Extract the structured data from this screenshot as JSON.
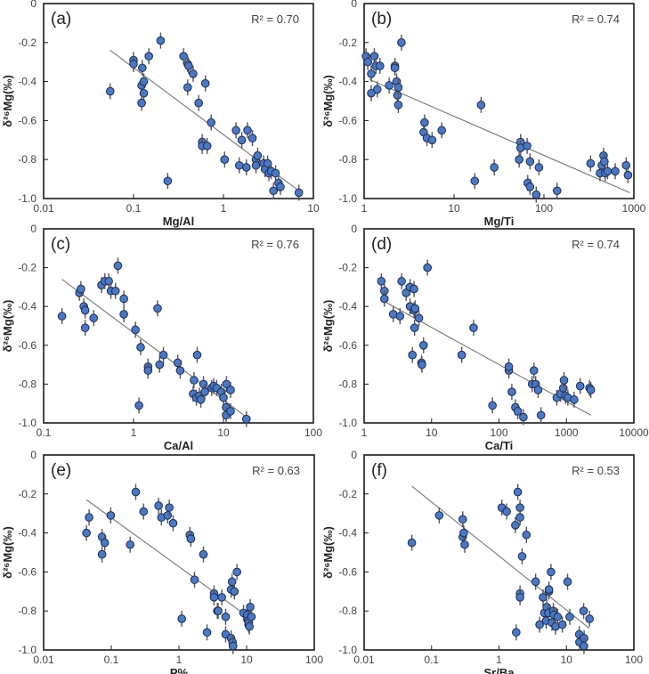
{
  "colors": {
    "marker_fill": "#4a78c8",
    "marker_stroke": "#1c2c4c",
    "error_bar": "#555555",
    "fit_line": "#777777",
    "frame": "#1a1a1a"
  },
  "chart_data": [
    {
      "type": "scatter",
      "panel": "(a)",
      "r2": "R² = 0.70",
      "xlabel": "Mg/Al",
      "ylabel": "δ²⁶Mg(‰)",
      "xscale": "log",
      "xlim": [
        0.01,
        10
      ],
      "ylim": [
        -1.0,
        0
      ],
      "xticks": [
        "0.01",
        "0.1",
        "1",
        "10"
      ],
      "xtick_values": [
        0.01,
        0.1,
        1,
        10
      ],
      "yticks": [
        "0",
        "-0.2",
        "-0.4",
        "-0.6",
        "-0.8",
        "-1.0"
      ],
      "ytick_values": [
        0,
        -0.2,
        -0.4,
        -0.6,
        -0.8,
        -1.0
      ],
      "fit": {
        "x": [
          0.055,
          6.9
        ],
        "y": [
          -0.24,
          -0.96
        ]
      },
      "points": [
        [
          0.055,
          -0.45
        ],
        [
          0.1,
          -0.29
        ],
        [
          0.1,
          -0.31
        ],
        [
          0.125,
          -0.33
        ],
        [
          0.123,
          -0.42
        ],
        [
          0.13,
          -0.46
        ],
        [
          0.123,
          -0.51
        ],
        [
          0.13,
          -0.4
        ],
        [
          0.148,
          -0.27
        ],
        [
          0.2,
          -0.19
        ],
        [
          0.24,
          -0.91
        ],
        [
          0.36,
          -0.27
        ],
        [
          0.4,
          -0.31
        ],
        [
          0.41,
          -0.32
        ],
        [
          0.4,
          -0.43
        ],
        [
          0.46,
          -0.36
        ],
        [
          0.63,
          -0.41
        ],
        [
          0.53,
          -0.51
        ],
        [
          0.73,
          -0.61
        ],
        [
          0.58,
          -0.71
        ],
        [
          0.58,
          -0.73
        ],
        [
          0.66,
          -0.73
        ],
        [
          1.03,
          -0.8
        ],
        [
          1.38,
          -0.65
        ],
        [
          1.5,
          -0.83
        ],
        [
          1.6,
          -0.7
        ],
        [
          1.8,
          -0.84
        ],
        [
          1.85,
          -0.65
        ],
        [
          2.1,
          -0.69
        ],
        [
          2.3,
          -0.8
        ],
        [
          2.3,
          -0.83
        ],
        [
          2.4,
          -0.78
        ],
        [
          2.8,
          -0.82
        ],
        [
          2.9,
          -0.85
        ],
        [
          3.1,
          -0.82
        ],
        [
          3.2,
          -0.87
        ],
        [
          3.4,
          -0.86
        ],
        [
          3.8,
          -0.87
        ],
        [
          3.6,
          -0.96
        ],
        [
          4.1,
          -0.92
        ],
        [
          4.3,
          -0.94
        ],
        [
          6.9,
          -0.97
        ]
      ]
    },
    {
      "type": "scatter",
      "panel": "(b)",
      "r2": "R² = 0.74",
      "xlabel": "Mg/Ti",
      "ylabel": "δ²⁶Mg(‰)",
      "xscale": "log",
      "xlim": [
        1,
        1000
      ],
      "ylim": [
        -1.0,
        0
      ],
      "xticks": [
        "1",
        "10",
        "100",
        "1000"
      ],
      "xtick_values": [
        1,
        10,
        100,
        1000
      ],
      "yticks": [
        "0",
        "-0.2",
        "-0.4",
        "-0.6",
        "-0.8",
        "-1.0"
      ],
      "ytick_values": [
        0,
        -0.2,
        -0.4,
        -0.6,
        -0.8,
        -1.0
      ],
      "fit": {
        "x": [
          1.15,
          900
        ],
        "y": [
          -0.39,
          -0.97
        ]
      },
      "points": [
        [
          1.05,
          -0.27
        ],
        [
          1.1,
          -0.3
        ],
        [
          1.2,
          -0.36
        ],
        [
          1.2,
          -0.46
        ],
        [
          1.3,
          -0.27
        ],
        [
          1.35,
          -0.32
        ],
        [
          1.4,
          -0.44
        ],
        [
          1.5,
          -0.32
        ],
        [
          1.9,
          -0.42
        ],
        [
          2.2,
          -0.32
        ],
        [
          2.2,
          -0.33
        ],
        [
          2.3,
          -0.4
        ],
        [
          2.35,
          -0.47
        ],
        [
          2.4,
          -0.43
        ],
        [
          2.4,
          -0.52
        ],
        [
          2.6,
          -0.2
        ],
        [
          4.6,
          -0.66
        ],
        [
          4.7,
          -0.61
        ],
        [
          5.0,
          -0.69
        ],
        [
          5.7,
          -0.7
        ],
        [
          7.3,
          -0.65
        ],
        [
          17,
          -0.91
        ],
        [
          20,
          -0.52
        ],
        [
          28,
          -0.84
        ],
        [
          53,
          -0.8
        ],
        [
          55,
          -0.71
        ],
        [
          55,
          -0.74
        ],
        [
          65,
          -0.73
        ],
        [
          66,
          -0.92
        ],
        [
          70,
          -0.94
        ],
        [
          70,
          -0.81
        ],
        [
          82,
          -0.98
        ],
        [
          88,
          -0.84
        ],
        [
          140,
          -0.96
        ],
        [
          330,
          -0.82
        ],
        [
          420,
          -0.87
        ],
        [
          440,
          -0.83
        ],
        [
          460,
          -0.78
        ],
        [
          470,
          -0.81
        ],
        [
          480,
          -0.87
        ],
        [
          510,
          -0.86
        ],
        [
          620,
          -0.86
        ],
        [
          820,
          -0.83
        ],
        [
          860,
          -0.88
        ]
      ]
    },
    {
      "type": "scatter",
      "panel": "(c)",
      "r2": "R² = 0.76",
      "xlabel": "Ca/Al",
      "ylabel": "δ²⁶Mg(‰)",
      "xscale": "log",
      "xlim": [
        0.1,
        100
      ],
      "ylim": [
        -1.0,
        0
      ],
      "xticks": [
        "0.1",
        "1",
        "10",
        "100"
      ],
      "xtick_values": [
        0.1,
        1,
        10,
        100
      ],
      "yticks": [
        "0",
        "-0.2",
        "-0.4",
        "-0.6",
        "-0.8",
        "-1.0"
      ],
      "ytick_values": [
        0,
        -0.2,
        -0.4,
        -0.6,
        -0.8,
        -1.0
      ],
      "fit": {
        "x": [
          0.16,
          18
        ],
        "y": [
          -0.26,
          -0.97
        ]
      },
      "points": [
        [
          0.16,
          -0.45
        ],
        [
          0.25,
          -0.33
        ],
        [
          0.26,
          -0.31
        ],
        [
          0.28,
          -0.4
        ],
        [
          0.29,
          -0.42
        ],
        [
          0.29,
          -0.51
        ],
        [
          0.36,
          -0.46
        ],
        [
          0.44,
          -0.29
        ],
        [
          0.48,
          -0.27
        ],
        [
          0.53,
          -0.27
        ],
        [
          0.56,
          -0.32
        ],
        [
          0.63,
          -0.32
        ],
        [
          0.67,
          -0.19
        ],
        [
          0.78,
          -0.36
        ],
        [
          0.78,
          -0.44
        ],
        [
          1.05,
          -0.52
        ],
        [
          1.15,
          -0.91
        ],
        [
          1.2,
          -0.61
        ],
        [
          1.45,
          -0.71
        ],
        [
          1.45,
          -0.73
        ],
        [
          1.85,
          -0.41
        ],
        [
          1.95,
          -0.7
        ],
        [
          2.15,
          -0.65
        ],
        [
          3.1,
          -0.69
        ],
        [
          3.3,
          -0.73
        ],
        [
          4.7,
          -0.78
        ],
        [
          4.6,
          -0.85
        ],
        [
          5.0,
          -0.87
        ],
        [
          5.1,
          -0.65
        ],
        [
          5.4,
          -0.86
        ],
        [
          5.6,
          -0.88
        ],
        [
          6.0,
          -0.8
        ],
        [
          6.2,
          -0.84
        ],
        [
          7.4,
          -0.82
        ],
        [
          7.8,
          -0.81
        ],
        [
          8.4,
          -0.82
        ],
        [
          9.5,
          -0.84
        ],
        [
          10,
          -0.87
        ],
        [
          10.8,
          -0.8
        ],
        [
          10.7,
          -0.92
        ],
        [
          10.7,
          -0.96
        ],
        [
          12,
          -0.83
        ],
        [
          12,
          -0.94
        ],
        [
          18,
          -0.98
        ]
      ]
    },
    {
      "type": "scatter",
      "panel": "(d)",
      "r2": "R² = 0.74",
      "xlabel": "Ca/Ti",
      "ylabel": "δ²⁶Mg(‰)",
      "xscale": "log",
      "xlim": [
        1,
        10000
      ],
      "ylim": [
        -1.0,
        0
      ],
      "xticks": [
        "1",
        "10",
        "100",
        "1000",
        "10000"
      ],
      "xtick_values": [
        1,
        10,
        100,
        1000,
        10000
      ],
      "yticks": [
        "0",
        "-0.2",
        "-0.4",
        "-0.6",
        "-0.8",
        "-1.0"
      ],
      "ytick_values": [
        0,
        -0.2,
        -0.4,
        -0.6,
        -0.8,
        -1.0
      ],
      "fit": {
        "x": [
          1.9,
          2300
        ],
        "y": [
          -0.37,
          -0.96
        ]
      },
      "points": [
        [
          1.8,
          -0.27
        ],
        [
          2.0,
          -0.32
        ],
        [
          2.0,
          -0.36
        ],
        [
          2.7,
          -0.44
        ],
        [
          3.4,
          -0.45
        ],
        [
          3.6,
          -0.27
        ],
        [
          4.2,
          -0.33
        ],
        [
          4.8,
          -0.3
        ],
        [
          4.8,
          -0.4
        ],
        [
          5.2,
          -0.65
        ],
        [
          5.5,
          -0.31
        ],
        [
          5.5,
          -0.42
        ],
        [
          5.6,
          -0.51
        ],
        [
          5.7,
          -0.41
        ],
        [
          6.5,
          -0.46
        ],
        [
          7.1,
          -0.69
        ],
        [
          7.2,
          -0.7
        ],
        [
          7.6,
          -0.6
        ],
        [
          8.7,
          -0.2
        ],
        [
          28,
          -0.65
        ],
        [
          42,
          -0.51
        ],
        [
          80,
          -0.91
        ],
        [
          140,
          -0.73
        ],
        [
          140,
          -0.71
        ],
        [
          155,
          -0.84
        ],
        [
          175,
          -0.92
        ],
        [
          190,
          -0.94
        ],
        [
          230,
          -0.97
        ],
        [
          310,
          -0.8
        ],
        [
          330,
          -0.73
        ],
        [
          350,
          -0.8
        ],
        [
          380,
          -0.83
        ],
        [
          420,
          -0.96
        ],
        [
          720,
          -0.87
        ],
        [
          820,
          -0.85
        ],
        [
          900,
          -0.82
        ],
        [
          920,
          -0.78
        ],
        [
          970,
          -0.86
        ],
        [
          1050,
          -0.87
        ],
        [
          1300,
          -0.88
        ],
        [
          1600,
          -0.81
        ],
        [
          2200,
          -0.82
        ],
        [
          2300,
          -0.83
        ]
      ]
    },
    {
      "type": "scatter",
      "panel": "(e)",
      "r2": "R² = 0.63",
      "xlabel": "P%",
      "ylabel": "δ²⁶Mg(‰)",
      "xscale": "log",
      "xlim": [
        0.01,
        100
      ],
      "ylim": [
        -1.0,
        0
      ],
      "xticks": [
        "0.01",
        "0.1",
        "1",
        "10",
        "100"
      ],
      "xtick_values": [
        0.01,
        0.1,
        1,
        10,
        100
      ],
      "yticks": [
        "0",
        "-0.2",
        "-0.4",
        "-0.6",
        "-0.8",
        "-1.0"
      ],
      "ytick_values": [
        0,
        -0.2,
        -0.4,
        -0.6,
        -0.8,
        -1.0
      ],
      "fit": {
        "x": [
          0.043,
          8.8
        ],
        "y": [
          -0.23,
          -0.81
        ]
      },
      "points": [
        [
          0.043,
          -0.4
        ],
        [
          0.047,
          -0.32
        ],
        [
          0.073,
          -0.42
        ],
        [
          0.073,
          -0.51
        ],
        [
          0.08,
          -0.45
        ],
        [
          0.098,
          -0.31
        ],
        [
          0.19,
          -0.46
        ],
        [
          0.23,
          -0.19
        ],
        [
          0.3,
          -0.29
        ],
        [
          0.5,
          -0.26
        ],
        [
          0.55,
          -0.32
        ],
        [
          0.68,
          -0.31
        ],
        [
          0.72,
          -0.27
        ],
        [
          0.82,
          -0.35
        ],
        [
          1.1,
          -0.84
        ],
        [
          1.45,
          -0.41
        ],
        [
          1.5,
          -0.43
        ],
        [
          1.7,
          -0.64
        ],
        [
          2.3,
          -0.51
        ],
        [
          2.6,
          -0.91
        ],
        [
          3.3,
          -0.71
        ],
        [
          3.3,
          -0.73
        ],
        [
          3.7,
          -0.8
        ],
        [
          3.8,
          -0.8
        ],
        [
          4.3,
          -0.73
        ],
        [
          4.9,
          -0.83
        ],
        [
          4.9,
          -0.92
        ],
        [
          5.9,
          -0.69
        ],
        [
          5.9,
          -0.94
        ],
        [
          6.1,
          -0.65
        ],
        [
          6.2,
          -0.96
        ],
        [
          6.3,
          -0.98
        ],
        [
          6.6,
          -0.7
        ],
        [
          7.2,
          -0.6
        ],
        [
          9.0,
          -0.81
        ],
        [
          10.2,
          -0.82
        ],
        [
          10.5,
          -0.85
        ],
        [
          10.7,
          -0.87
        ],
        [
          10.8,
          -0.86
        ],
        [
          11,
          -0.88
        ],
        [
          11.3,
          -0.78
        ],
        [
          11.8,
          -0.83
        ]
      ]
    },
    {
      "type": "scatter",
      "panel": "(f)",
      "r2": "R² = 0.53",
      "xlabel": "Sr/Ba",
      "ylabel": "δ²⁶Mg(‰)",
      "xscale": "log",
      "xlim": [
        0.01,
        100
      ],
      "ylim": [
        -1.0,
        0
      ],
      "xticks": [
        "0.01",
        "0.1",
        "1",
        "10",
        "100"
      ],
      "xtick_values": [
        0.01,
        0.1,
        1,
        10,
        100
      ],
      "yticks": [
        "0",
        "-0.2",
        "-0.4",
        "-0.6",
        "-0.8",
        "-1.0"
      ],
      "ytick_values": [
        0,
        -0.2,
        -0.4,
        -0.6,
        -0.8,
        -1.0
      ],
      "fit": {
        "x": [
          0.051,
          22
        ],
        "y": [
          -0.16,
          -0.89
        ]
      },
      "points": [
        [
          0.051,
          -0.45
        ],
        [
          0.13,
          -0.31
        ],
        [
          0.29,
          -0.33
        ],
        [
          0.29,
          -0.42
        ],
        [
          0.3,
          -0.4
        ],
        [
          0.31,
          -0.46
        ],
        [
          1.1,
          -0.27
        ],
        [
          1.3,
          -0.29
        ],
        [
          1.75,
          -0.36
        ],
        [
          1.8,
          -0.91
        ],
        [
          1.9,
          -0.19
        ],
        [
          2.05,
          -0.27
        ],
        [
          2.05,
          -0.32
        ],
        [
          2.05,
          -0.71
        ],
        [
          2.05,
          -0.73
        ],
        [
          2.2,
          -0.52
        ],
        [
          2.55,
          -0.41
        ],
        [
          3.5,
          -0.65
        ],
        [
          4.0,
          -0.87
        ],
        [
          4.5,
          -0.73
        ],
        [
          4.7,
          -0.81
        ],
        [
          5.0,
          -0.85
        ],
        [
          5.1,
          -0.78
        ],
        [
          5.4,
          -0.81
        ],
        [
          5.5,
          -0.7
        ],
        [
          5.5,
          -0.69
        ],
        [
          5.9,
          -0.6
        ],
        [
          6.1,
          -0.86
        ],
        [
          6.4,
          -0.8
        ],
        [
          6.5,
          -0.82
        ],
        [
          6.9,
          -0.88
        ],
        [
          7.4,
          -0.83
        ],
        [
          8.7,
          -0.87
        ],
        [
          10.4,
          -0.65
        ],
        [
          11.2,
          -0.83
        ],
        [
          15.5,
          -0.92
        ],
        [
          15.6,
          -0.96
        ],
        [
          18,
          -0.8
        ],
        [
          18.3,
          -0.94
        ],
        [
          18.2,
          -0.98
        ],
        [
          22,
          -0.84
        ]
      ]
    }
  ]
}
